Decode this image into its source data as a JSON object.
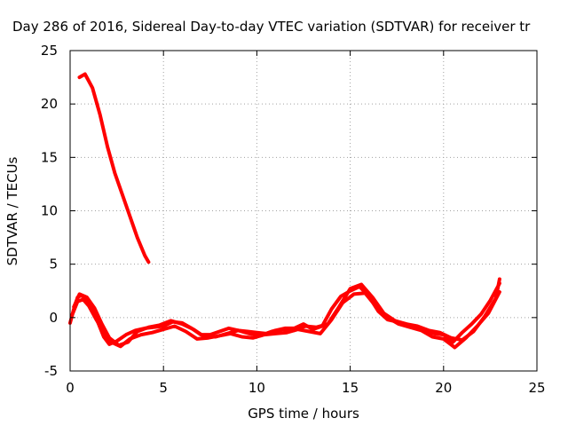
{
  "chart_data": {
    "type": "line",
    "title": "Day 286 of 2016, Sidereal Day-to-day VTEC variation (SDTVAR) for receiver tr",
    "xlabel": "GPS time / hours",
    "ylabel": "SDTVAR / TECUs",
    "xlim": [
      0,
      25
    ],
    "ylim": [
      -5,
      25
    ],
    "xticks": [
      0,
      5,
      10,
      15,
      20,
      25
    ],
    "yticks": [
      -5,
      0,
      5,
      10,
      15,
      20,
      25
    ],
    "grid": true,
    "series_color": "#ff0000",
    "series": [
      {
        "x": [
          0.5,
          0.8,
          1.2,
          1.6,
          2.0,
          2.4,
          2.8,
          3.2,
          3.6,
          4.0,
          4.2
        ],
        "y": [
          22.5,
          22.8,
          21.5,
          19.0,
          16.0,
          13.5,
          11.5,
          9.5,
          7.5,
          5.8,
          5.2
        ]
      },
      {
        "x": [
          0.0,
          0.2,
          0.4,
          0.6,
          0.9,
          1.2,
          1.5,
          1.8,
          2.1,
          2.5,
          3.0,
          3.5,
          4.0,
          4.5,
          5.0,
          5.5,
          6.0,
          6.5,
          7.0,
          7.5,
          8.0,
          8.5,
          9.0,
          9.5,
          10.0,
          10.5,
          11.0,
          11.5,
          12.0,
          12.5,
          13.0,
          13.5,
          14.0,
          14.5,
          15.0,
          15.5,
          16.0,
          16.5,
          17.0,
          17.5,
          18.0,
          18.5,
          19.0,
          19.5,
          20.0,
          20.5,
          21.0,
          21.5,
          22.0,
          22.5,
          23.0
        ],
        "y": [
          -0.5,
          0.8,
          1.9,
          2.1,
          1.7,
          0.8,
          -0.5,
          -1.8,
          -2.5,
          -2.2,
          -1.6,
          -1.2,
          -1.0,
          -0.9,
          -0.8,
          -0.4,
          -0.5,
          -1.0,
          -1.6,
          -1.6,
          -1.3,
          -1.0,
          -1.2,
          -1.3,
          -1.4,
          -1.5,
          -1.2,
          -1.0,
          -1.0,
          -0.6,
          -1.1,
          -0.8,
          0.8,
          2.0,
          2.5,
          2.9,
          2.0,
          0.6,
          -0.2,
          -0.4,
          -0.6,
          -0.9,
          -1.2,
          -1.5,
          -1.6,
          -2.3,
          -1.4,
          -0.6,
          0.3,
          1.6,
          3.2
        ]
      },
      {
        "x": [
          0.1,
          0.4,
          0.7,
          1.0,
          1.4,
          1.8,
          2.2,
          2.7,
          3.2,
          3.8,
          4.4,
          5.0,
          5.6,
          6.2,
          6.8,
          7.4,
          8.0,
          8.6,
          9.2,
          9.8,
          10.4,
          11.0,
          11.6,
          12.2,
          12.8,
          13.4,
          14.0,
          14.6,
          15.2,
          15.8,
          16.4,
          17.0,
          17.6,
          18.2,
          18.8,
          19.4,
          20.0,
          20.6,
          21.2,
          21.8,
          22.4,
          23.0
        ],
        "y": [
          0.2,
          1.5,
          1.7,
          1.1,
          -0.2,
          -1.3,
          -2.3,
          -2.7,
          -2.0,
          -1.6,
          -1.4,
          -1.1,
          -0.8,
          -1.3,
          -2.0,
          -1.9,
          -1.7,
          -1.5,
          -1.8,
          -1.9,
          -1.6,
          -1.5,
          -1.4,
          -1.1,
          -1.3,
          -1.5,
          -0.2,
          1.4,
          2.2,
          2.3,
          1.0,
          0.0,
          -0.6,
          -0.9,
          -1.2,
          -1.8,
          -2.0,
          -2.8,
          -1.9,
          -0.8,
          0.4,
          2.4
        ]
      },
      {
        "x": [
          0.2,
          0.5,
          0.9,
          1.3,
          1.7,
          2.1,
          2.6,
          3.1,
          3.6,
          4.2,
          4.8,
          5.4,
          6.0,
          6.6,
          7.2,
          7.8,
          8.4,
          9.0,
          9.6,
          10.2,
          10.8,
          11.4,
          12.0,
          12.6,
          13.2,
          13.8,
          14.4,
          15.0,
          15.6,
          16.2,
          16.8,
          17.4,
          18.0,
          18.6,
          19.2,
          19.8,
          20.4,
          21.0,
          21.6,
          22.2,
          22.8,
          23.0
        ],
        "y": [
          1.0,
          2.2,
          1.9,
          0.9,
          -0.6,
          -1.9,
          -2.6,
          -2.3,
          -1.3,
          -0.9,
          -0.7,
          -0.3,
          -0.6,
          -1.1,
          -1.8,
          -1.8,
          -1.5,
          -1.2,
          -1.5,
          -1.7,
          -1.3,
          -1.1,
          -1.2,
          -0.8,
          -0.9,
          -0.6,
          1.0,
          2.7,
          3.1,
          1.9,
          0.4,
          -0.3,
          -0.6,
          -0.8,
          -1.2,
          -1.4,
          -1.9,
          -2.1,
          -1.3,
          0.1,
          1.8,
          3.6
        ]
      }
    ]
  }
}
